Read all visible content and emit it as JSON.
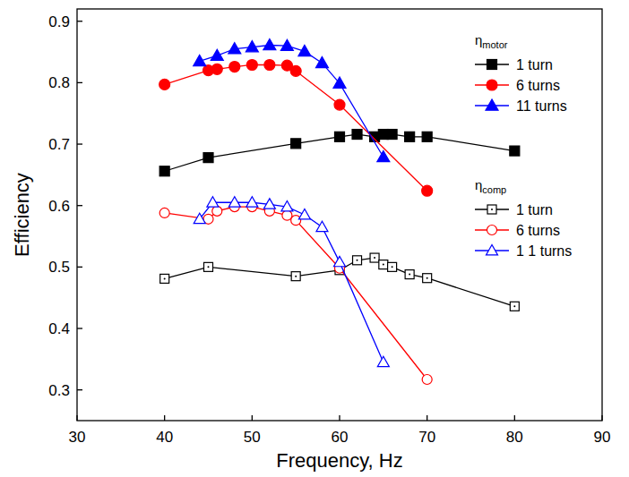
{
  "chart_data": {
    "type": "line",
    "x_label": "Frequency, Hz",
    "y_label": "Efficiency",
    "annotations": [
      {
        "text": "η",
        "sub": "motor"
      },
      {
        "text": "η",
        "sub": "comp"
      }
    ],
    "xlim": [
      30,
      90
    ],
    "xticks": [
      30,
      40,
      50,
      60,
      70,
      80,
      90
    ],
    "ylim": [
      0.25,
      0.92
    ],
    "yticks": [
      0.3,
      0.4,
      0.5,
      0.6,
      0.7,
      0.8,
      0.9
    ],
    "grid": false,
    "legend": "right",
    "series": [
      {
        "name": "1 turn",
        "color": "#000000",
        "marker": "square",
        "line_style": "solid",
        "x": [
          40,
          45,
          55,
          60,
          62,
          64,
          65,
          66,
          68,
          70,
          80
        ],
        "values": [
          0.656,
          0.678,
          0.701,
          0.712,
          0.716,
          0.712,
          0.716,
          0.716,
          0.712,
          0.712,
          0.689
        ]
      },
      {
        "name": "6 turns",
        "color": "#ff0000",
        "marker": "circle",
        "line_style": "solid",
        "x": [
          40,
          45,
          46,
          48,
          50,
          52,
          54,
          55,
          60,
          70
        ],
        "values": [
          0.797,
          0.82,
          0.822,
          0.826,
          0.829,
          0.829,
          0.828,
          0.819,
          0.764,
          0.624
        ]
      },
      {
        "name": "11 turns",
        "color": "#0000ff",
        "marker": "triangle",
        "line_style": "solid",
        "x": [
          44,
          46,
          48,
          50,
          52,
          54,
          56,
          58,
          60,
          65
        ],
        "values": [
          0.835,
          0.844,
          0.855,
          0.858,
          0.861,
          0.86,
          0.851,
          0.832,
          0.799,
          0.679
        ]
      },
      {
        "name": "1 turn",
        "color": "#000000",
        "marker": "square-open",
        "line_style": "solid",
        "x": [
          40,
          45,
          55,
          60,
          62,
          64,
          65,
          66,
          68,
          70,
          80
        ],
        "values": [
          0.481,
          0.5,
          0.485,
          0.495,
          0.511,
          0.515,
          0.504,
          0.5,
          0.488,
          0.482,
          0.436
        ]
      },
      {
        "name": "6 turns",
        "color": "#ff0000",
        "marker": "circle-open",
        "line_style": "solid",
        "x": [
          40,
          45,
          46,
          48,
          50,
          52,
          54,
          55,
          60,
          70
        ],
        "values": [
          0.588,
          0.578,
          0.591,
          0.598,
          0.598,
          0.591,
          0.584,
          0.576,
          0.498,
          0.317
        ]
      },
      {
        "name": "1 1 turns",
        "color": "#0000ff",
        "marker": "triangle-open",
        "line_style": "solid",
        "x": [
          44,
          45.5,
          48,
          50,
          52,
          54,
          56,
          58,
          60,
          65
        ],
        "values": [
          0.578,
          0.605,
          0.605,
          0.605,
          0.602,
          0.598,
          0.585,
          0.565,
          0.508,
          0.345
        ]
      }
    ]
  }
}
